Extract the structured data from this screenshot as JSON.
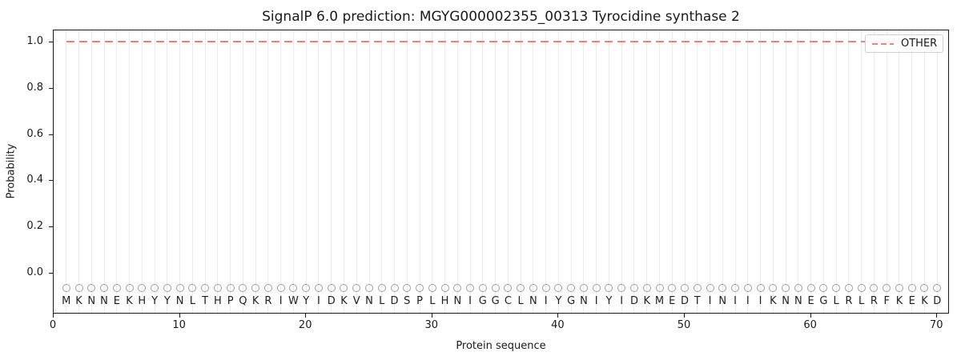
{
  "title": "SignalP 6.0 prediction: MGYG000002355_00313 Tyrocidine synthase 2",
  "axes": {
    "xlabel": "Protein sequence",
    "ylabel": "Probability",
    "x_ticks": [
      0,
      10,
      20,
      30,
      40,
      50,
      60,
      70
    ],
    "y_ticks": [
      "0.0",
      "0.2",
      "0.4",
      "0.6",
      "0.8",
      "1.0"
    ]
  },
  "legend": {
    "label": "OTHER"
  },
  "sequence": "MKNNEKHYYNLTHPQKRIWYIDKVNLDSPLHNIGGCLNIYGNIYIDKMEDTINIIIKNNEGLRLRFKEKD",
  "colors": {
    "line": "#f08080",
    "grid": "#ebebeb",
    "marker": "#9e9e9e",
    "letter": "#1f1f1f",
    "spine": "#1a1a1a",
    "legend_border": "#d0d0d0"
  },
  "chart_data": {
    "type": "line",
    "title": "SignalP 6.0 prediction: MGYG000002355_00313 Tyrocidine synthase 2",
    "xlabel": "Protein sequence",
    "ylabel": "Probability",
    "xlim": [
      0,
      71
    ],
    "ylim": [
      -0.17,
      1.05
    ],
    "grid": "vertical gridline at each residue position",
    "legend_position": "upper right",
    "residues": "MKNNEKHYYNLTHPQKRIWYIDKVNLDSPLHNIGGCLNIYGNIYIDKMEDTINIIIKNNEGLRLRFKEKD",
    "marker_row": "gray open circle above each residue letter, drawn below y=0",
    "series": [
      {
        "name": "OTHER",
        "color": "#f08080",
        "linestyle": "dashed",
        "x": [
          1,
          2,
          3,
          4,
          5,
          6,
          7,
          8,
          9,
          10,
          11,
          12,
          13,
          14,
          15,
          16,
          17,
          18,
          19,
          20,
          21,
          22,
          23,
          24,
          25,
          26,
          27,
          28,
          29,
          30,
          31,
          32,
          33,
          34,
          35,
          36,
          37,
          38,
          39,
          40,
          41,
          42,
          43,
          44,
          45,
          46,
          47,
          48,
          49,
          50,
          51,
          52,
          53,
          54,
          55,
          56,
          57,
          58,
          59,
          60,
          61,
          62,
          63,
          64,
          65,
          66,
          67,
          68,
          69,
          70
        ],
        "y": [
          1.0,
          1.0,
          1.0,
          1.0,
          1.0,
          1.0,
          1.0,
          1.0,
          1.0,
          1.0,
          1.0,
          1.0,
          1.0,
          1.0,
          1.0,
          1.0,
          1.0,
          1.0,
          1.0,
          1.0,
          1.0,
          1.0,
          1.0,
          1.0,
          1.0,
          1.0,
          1.0,
          1.0,
          1.0,
          1.0,
          1.0,
          1.0,
          1.0,
          1.0,
          1.0,
          1.0,
          1.0,
          1.0,
          1.0,
          1.0,
          1.0,
          1.0,
          1.0,
          1.0,
          1.0,
          1.0,
          1.0,
          1.0,
          1.0,
          1.0,
          1.0,
          1.0,
          1.0,
          1.0,
          1.0,
          1.0,
          1.0,
          1.0,
          1.0,
          1.0,
          1.0,
          1.0,
          1.0,
          1.0,
          1.0,
          1.0,
          1.0,
          1.0,
          1.0,
          1.0
        ]
      }
    ]
  }
}
